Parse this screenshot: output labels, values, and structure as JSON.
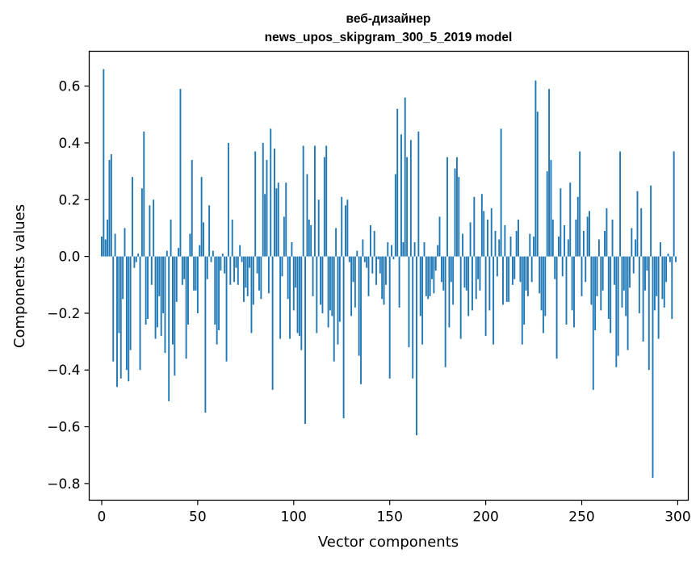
{
  "chart_data": {
    "type": "bar",
    "title": "веб-дизайнер",
    "subtitle": "news_upos_skipgram_300_5_2019 model",
    "xlabel": "Vector components",
    "ylabel": "Components values",
    "xlim": [
      -6.5,
      305.5
    ],
    "ylim": [
      -0.8587,
      0.7228
    ],
    "xticks": [
      0,
      50,
      100,
      150,
      200,
      250,
      300
    ],
    "xtick_labels": [
      "0",
      "50",
      "100",
      "150",
      "200",
      "250",
      "300"
    ],
    "yticks": [
      -0.8,
      -0.6,
      -0.4,
      -0.2,
      0.0,
      0.2,
      0.4,
      0.6
    ],
    "ytick_labels": [
      "−0.8",
      "−0.6",
      "−0.4",
      "−0.2",
      "0.0",
      "0.2",
      "0.4",
      "0.6"
    ],
    "grid": false,
    "bar_color": "#1f77b4",
    "x": [
      0,
      1,
      2,
      3,
      4,
      5,
      6,
      7,
      8,
      9,
      10,
      11,
      12,
      13,
      14,
      15,
      16,
      17,
      18,
      19,
      20,
      21,
      22,
      23,
      24,
      25,
      26,
      27,
      28,
      29,
      30,
      31,
      32,
      33,
      34,
      35,
      36,
      37,
      38,
      39,
      40,
      41,
      42,
      43,
      44,
      45,
      46,
      47,
      48,
      49,
      50,
      51,
      52,
      53,
      54,
      55,
      56,
      57,
      58,
      59,
      60,
      61,
      62,
      63,
      64,
      65,
      66,
      67,
      68,
      69,
      70,
      71,
      72,
      73,
      74,
      75,
      76,
      77,
      78,
      79,
      80,
      81,
      82,
      83,
      84,
      85,
      86,
      87,
      88,
      89,
      90,
      91,
      92,
      93,
      94,
      95,
      96,
      97,
      98,
      99,
      100,
      101,
      102,
      103,
      104,
      105,
      106,
      107,
      108,
      109,
      110,
      111,
      112,
      113,
      114,
      115,
      116,
      117,
      118,
      119,
      120,
      121,
      122,
      123,
      124,
      125,
      126,
      127,
      128,
      129,
      130,
      131,
      132,
      133,
      134,
      135,
      136,
      137,
      138,
      139,
      140,
      141,
      142,
      143,
      144,
      145,
      146,
      147,
      148,
      149,
      150,
      151,
      152,
      153,
      154,
      155,
      156,
      157,
      158,
      159,
      160,
      161,
      162,
      163,
      164,
      165,
      166,
      167,
      168,
      169,
      170,
      171,
      172,
      173,
      174,
      175,
      176,
      177,
      178,
      179,
      180,
      181,
      182,
      183,
      184,
      185,
      186,
      187,
      188,
      189,
      190,
      191,
      192,
      193,
      194,
      195,
      196,
      197,
      198,
      199,
      200,
      201,
      202,
      203,
      204,
      205,
      206,
      207,
      208,
      209,
      210,
      211,
      212,
      213,
      214,
      215,
      216,
      217,
      218,
      219,
      220,
      221,
      222,
      223,
      224,
      225,
      226,
      227,
      228,
      229,
      230,
      231,
      232,
      233,
      234,
      235,
      236,
      237,
      238,
      239,
      240,
      241,
      242,
      243,
      244,
      245,
      246,
      247,
      248,
      249,
      250,
      251,
      252,
      253,
      254,
      255,
      256,
      257,
      258,
      259,
      260,
      261,
      262,
      263,
      264,
      265,
      266,
      267,
      268,
      269,
      270,
      271,
      272,
      273,
      274,
      275,
      276,
      277,
      278,
      279,
      280,
      281,
      282,
      283,
      284,
      285,
      286,
      287,
      288,
      289,
      290,
      291,
      292,
      293,
      294,
      295,
      296,
      297,
      298,
      299
    ],
    "values": [
      0.07,
      0.66,
      0.06,
      0.13,
      0.34,
      0.36,
      -0.37,
      0.08,
      -0.46,
      -0.27,
      -0.43,
      -0.15,
      0.1,
      -0.4,
      -0.44,
      -0.33,
      0.28,
      -0.04,
      -0.02,
      0.01,
      -0.4,
      0.24,
      0.44,
      -0.24,
      -0.22,
      0.18,
      -0.1,
      0.2,
      -0.29,
      -0.25,
      -0.14,
      -0.28,
      -0.2,
      -0.34,
      0.02,
      -0.51,
      0.13,
      -0.31,
      -0.42,
      -0.16,
      0.03,
      0.59,
      -0.1,
      -0.08,
      -0.36,
      -0.24,
      0.08,
      0.34,
      -0.12,
      -0.12,
      -0.2,
      0.04,
      0.28,
      0.12,
      -0.55,
      -0.08,
      0.18,
      -0.02,
      0.02,
      -0.24,
      -0.31,
      -0.26,
      -0.05,
      0.01,
      -0.06,
      -0.37,
      0.4,
      -0.1,
      0.13,
      -0.09,
      -0.04,
      -0.1,
      0.04,
      -0.02,
      -0.16,
      -0.11,
      -0.14,
      -0.04,
      -0.27,
      -0.17,
      0.37,
      -0.06,
      -0.12,
      -0.15,
      0.4,
      0.22,
      0.34,
      -0.13,
      0.45,
      -0.47,
      0.38,
      0.24,
      0.26,
      -0.29,
      -0.07,
      0.14,
      0.26,
      -0.15,
      -0.29,
      0.05,
      -0.19,
      -0.11,
      -0.27,
      -0.28,
      -0.33,
      0.39,
      -0.59,
      0.29,
      0.13,
      0.11,
      -0.14,
      0.39,
      -0.27,
      0.2,
      -0.17,
      -0.2,
      0.35,
      0.39,
      -0.25,
      -0.19,
      -0.21,
      -0.37,
      0.1,
      -0.31,
      -0.23,
      0.21,
      -0.57,
      0.18,
      0.2,
      -0.02,
      -0.21,
      -0.09,
      -0.18,
      0.02,
      -0.35,
      -0.45,
      0.06,
      -0.02,
      -0.04,
      -0.14,
      0.11,
      -0.06,
      0.09,
      -0.1,
      -0.01,
      -0.06,
      -0.15,
      -0.17,
      -0.1,
      0.05,
      -0.43,
      0.04,
      -0.01,
      0.29,
      0.52,
      -0.18,
      0.43,
      0.05,
      0.56,
      0.35,
      -0.32,
      0.41,
      -0.43,
      0.05,
      -0.63,
      0.44,
      -0.21,
      -0.31,
      0.05,
      -0.14,
      -0.15,
      -0.14,
      -0.08,
      -0.13,
      -0.05,
      0.04,
      0.14,
      -0.09,
      -0.12,
      -0.39,
      0.35,
      -0.25,
      -0.09,
      -0.17,
      0.31,
      0.35,
      0.28,
      -0.29,
      0.08,
      -0.11,
      -0.12,
      -0.21,
      0.12,
      -0.19,
      0.21,
      -0.15,
      -0.08,
      -0.12,
      0.22,
      0.16,
      -0.28,
      0.13,
      -0.19,
      0.17,
      -0.31,
      0.09,
      -0.07,
      0.06,
      0.45,
      -0.17,
      0.11,
      -0.16,
      -0.16,
      0.07,
      -0.1,
      -0.08,
      0.09,
      0.13,
      -0.09,
      -0.31,
      -0.24,
      -0.12,
      -0.14,
      0.08,
      -0.09,
      0.07,
      0.62,
      0.51,
      -0.13,
      -0.19,
      -0.27,
      -0.21,
      0.3,
      0.59,
      0.34,
      0.13,
      -0.08,
      -0.36,
      0.07,
      0.24,
      -0.07,
      0.11,
      -0.24,
      0.06,
      0.26,
      -0.19,
      -0.25,
      0.13,
      0.21,
      0.37,
      -0.14,
      0.09,
      -0.09,
      0.14,
      0.16,
      -0.17,
      -0.47,
      -0.26,
      -0.14,
      0.06,
      -0.19,
      -0.12,
      0.09,
      0.17,
      -0.22,
      -0.27,
      0.13,
      -0.1,
      -0.39,
      -0.35,
      0.37,
      -0.18,
      -0.12,
      -0.21,
      -0.33,
      -0.11,
      0.1,
      -0.06,
      0.06,
      0.23,
      -0.2,
      0.17,
      -0.3,
      -0.12,
      -0.05,
      -0.4,
      0.25,
      -0.78,
      -0.19,
      -0.14,
      -0.29,
      0.05,
      -0.15,
      -0.18,
      -0.09,
      0.01,
      -0.02,
      -0.22,
      0.37,
      -0.02
    ]
  }
}
